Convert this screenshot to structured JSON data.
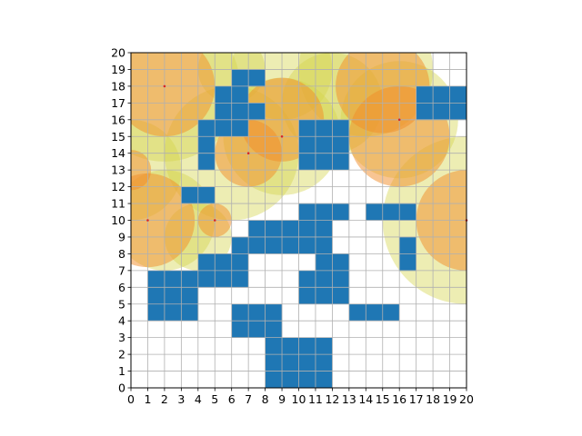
{
  "chart_data": {
    "type": "heatmap",
    "title": "",
    "xlabel": "",
    "ylabel": "",
    "xlim": [
      0,
      20
    ],
    "ylim": [
      0,
      20
    ],
    "x_ticks": [
      "0",
      "1",
      "2",
      "3",
      "4",
      "5",
      "6",
      "7",
      "8",
      "9",
      "10",
      "11",
      "12",
      "13",
      "14",
      "15",
      "16",
      "17",
      "18",
      "19",
      "20"
    ],
    "y_ticks": [
      "0",
      "1",
      "2",
      "3",
      "4",
      "5",
      "6",
      "7",
      "8",
      "9",
      "10",
      "11",
      "12",
      "13",
      "14",
      "15",
      "16",
      "17",
      "18",
      "19",
      "20"
    ],
    "grid": true,
    "colors": {
      "obstacle": "#1f77b4",
      "grid": "#b0b0b0",
      "outer_circle": "#d4d44a",
      "inner_circle": "#f28c28",
      "center_marker": "#d62728"
    },
    "obstacle_cells": [
      [
        8,
        0
      ],
      [
        9,
        0
      ],
      [
        10,
        0
      ],
      [
        11,
        0
      ],
      [
        8,
        1
      ],
      [
        9,
        1
      ],
      [
        10,
        1
      ],
      [
        11,
        1
      ],
      [
        8,
        2
      ],
      [
        9,
        2
      ],
      [
        10,
        2
      ],
      [
        11,
        2
      ],
      [
        6,
        3
      ],
      [
        7,
        3
      ],
      [
        8,
        3
      ],
      [
        1,
        4
      ],
      [
        2,
        4
      ],
      [
        3,
        4
      ],
      [
        6,
        4
      ],
      [
        7,
        4
      ],
      [
        8,
        4
      ],
      [
        13,
        4
      ],
      [
        14,
        4
      ],
      [
        15,
        4
      ],
      [
        1,
        5
      ],
      [
        2,
        5
      ],
      [
        3,
        5
      ],
      [
        10,
        5
      ],
      [
        11,
        5
      ],
      [
        12,
        5
      ],
      [
        1,
        6
      ],
      [
        2,
        6
      ],
      [
        3,
        6
      ],
      [
        4,
        6
      ],
      [
        5,
        6
      ],
      [
        6,
        6
      ],
      [
        10,
        6
      ],
      [
        11,
        6
      ],
      [
        12,
        6
      ],
      [
        4,
        7
      ],
      [
        5,
        7
      ],
      [
        6,
        7
      ],
      [
        11,
        7
      ],
      [
        12,
        7
      ],
      [
        16,
        7
      ],
      [
        6,
        8
      ],
      [
        7,
        8
      ],
      [
        8,
        8
      ],
      [
        9,
        8
      ],
      [
        10,
        8
      ],
      [
        11,
        8
      ],
      [
        16,
        8
      ],
      [
        7,
        9
      ],
      [
        8,
        9
      ],
      [
        9,
        9
      ],
      [
        10,
        9
      ],
      [
        11,
        9
      ],
      [
        10,
        10
      ],
      [
        11,
        10
      ],
      [
        12,
        10
      ],
      [
        14,
        10
      ],
      [
        15,
        10
      ],
      [
        16,
        10
      ],
      [
        3,
        11
      ],
      [
        4,
        11
      ],
      [
        4,
        13
      ],
      [
        10,
        13
      ],
      [
        11,
        13
      ],
      [
        12,
        13
      ],
      [
        4,
        14
      ],
      [
        10,
        14
      ],
      [
        11,
        14
      ],
      [
        12,
        14
      ],
      [
        4,
        15
      ],
      [
        5,
        15
      ],
      [
        6,
        15
      ],
      [
        10,
        15
      ],
      [
        11,
        15
      ],
      [
        12,
        15
      ],
      [
        5,
        16
      ],
      [
        6,
        16
      ],
      [
        7,
        16
      ],
      [
        17,
        16
      ],
      [
        18,
        16
      ],
      [
        19,
        16
      ],
      [
        5,
        17
      ],
      [
        6,
        17
      ],
      [
        17,
        17
      ],
      [
        18,
        17
      ],
      [
        19,
        17
      ],
      [
        6,
        18
      ],
      [
        7,
        18
      ]
    ],
    "outer_circles": [
      {
        "x": 2,
        "y": 18,
        "r": 4.5
      },
      {
        "x": 6,
        "y": 14,
        "r": 4
      },
      {
        "x": 9,
        "y": 15,
        "r": 3.5
      },
      {
        "x": 14,
        "y": 19,
        "r": 4
      },
      {
        "x": 16,
        "y": 16,
        "r": 3.5
      },
      {
        "x": 20,
        "y": 10,
        "r": 5
      },
      {
        "x": 2,
        "y": 10,
        "r": 3
      },
      {
        "x": 0,
        "y": 13,
        "r": 3
      },
      {
        "x": 9,
        "y": 19,
        "r": 3
      },
      {
        "x": 6,
        "y": 19,
        "r": 2
      },
      {
        "x": 12,
        "y": 17,
        "r": 3
      },
      {
        "x": 4,
        "y": 9,
        "r": 2
      }
    ],
    "inner_circles": [
      {
        "x": 2,
        "y": 18,
        "r": 3
      },
      {
        "x": 7,
        "y": 14,
        "r": 2
      },
      {
        "x": 9,
        "y": 16,
        "r": 2.5
      },
      {
        "x": 15,
        "y": 18,
        "r": 2.8
      },
      {
        "x": 16,
        "y": 15,
        "r": 3
      },
      {
        "x": 20,
        "y": 10,
        "r": 3
      },
      {
        "x": 1,
        "y": 10,
        "r": 2.8
      },
      {
        "x": 0,
        "y": 13,
        "r": 1.2
      },
      {
        "x": 5,
        "y": 10,
        "r": 1
      }
    ],
    "markers": [
      {
        "x": 2,
        "y": 18
      },
      {
        "x": 7,
        "y": 14
      },
      {
        "x": 9,
        "y": 15
      },
      {
        "x": 16,
        "y": 16
      },
      {
        "x": 20,
        "y": 10
      },
      {
        "x": 1,
        "y": 10
      },
      {
        "x": 5,
        "y": 10
      }
    ]
  }
}
